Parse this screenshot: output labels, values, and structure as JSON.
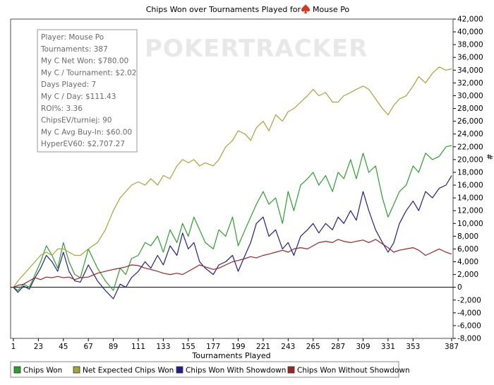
{
  "chart_data": {
    "type": "line",
    "title": "Chips Won over Tournaments Played for",
    "player_name": "Mouse Po",
    "watermark": "POKERTRACKER",
    "xlabel": "Tournaments Played",
    "ylabel": "#",
    "xlim": [
      1,
      387
    ],
    "ylim": [
      -8000,
      42000
    ],
    "xticks": [
      1,
      23,
      45,
      67,
      89,
      111,
      133,
      155,
      177,
      199,
      221,
      243,
      265,
      287,
      309,
      331,
      353,
      387
    ],
    "yticks": [
      -8000,
      -6000,
      -4000,
      -2000,
      0,
      2000,
      4000,
      6000,
      8000,
      10000,
      12000,
      14000,
      16000,
      18000,
      20000,
      22000,
      24000,
      26000,
      28000,
      30000,
      32000,
      34000,
      36000,
      38000,
      40000,
      42000
    ],
    "ytick_labels": [
      "-8,000",
      "-6,000",
      "-4,000",
      "-2,000",
      "0",
      "2,000",
      "4,000",
      "6,000",
      "8,000",
      "10,000",
      "12,000",
      "14,000",
      "16,000",
      "18,000",
      "20,000",
      "22,000",
      "24,000",
      "26,000",
      "28,000",
      "30,000",
      "32,000",
      "34,000",
      "36,000",
      "38,000",
      "40,000",
      "42,000"
    ],
    "grid": false,
    "legend_position": "bottom",
    "series": [
      {
        "name": "Chips Won",
        "color": "#2e9e2e",
        "x": [
          1,
          5,
          10,
          15,
          20,
          25,
          30,
          35,
          40,
          45,
          50,
          55,
          60,
          67,
          75,
          82,
          89,
          95,
          100,
          105,
          111,
          117,
          122,
          128,
          133,
          139,
          145,
          150,
          155,
          160,
          165,
          170,
          177,
          182,
          188,
          194,
          199,
          205,
          210,
          215,
          221,
          226,
          232,
          238,
          243,
          248,
          254,
          260,
          265,
          270,
          276,
          282,
          287,
          292,
          298,
          303,
          309,
          314,
          320,
          326,
          331,
          336,
          341,
          347,
          353,
          358,
          364,
          370,
          376,
          382,
          387
        ],
        "y": [
          0,
          -500,
          500,
          0,
          2000,
          4000,
          6500,
          5000,
          3000,
          7000,
          4000,
          2000,
          1500,
          6000,
          3000,
          1000,
          -500,
          3000,
          2000,
          4500,
          5000,
          7000,
          6500,
          8000,
          5500,
          9000,
          7000,
          10000,
          8000,
          11000,
          9000,
          7000,
          6000,
          9000,
          8000,
          11000,
          6500,
          9000,
          11000,
          13000,
          15000,
          13000,
          14000,
          10000,
          15000,
          12000,
          16000,
          17000,
          18000,
          16000,
          17500,
          15000,
          18000,
          17000,
          20000,
          17000,
          21000,
          18000,
          19000,
          14000,
          11000,
          13000,
          15000,
          16000,
          19000,
          18000,
          21000,
          20000,
          20500,
          22000,
          22200
        ]
      },
      {
        "name": "Net Expected Chips Won",
        "color": "#a4a43a",
        "x": [
          1,
          5,
          10,
          15,
          20,
          25,
          30,
          35,
          40,
          45,
          50,
          55,
          60,
          67,
          75,
          82,
          89,
          95,
          100,
          105,
          111,
          117,
          122,
          128,
          133,
          139,
          145,
          150,
          155,
          160,
          165,
          170,
          177,
          182,
          188,
          194,
          199,
          205,
          210,
          215,
          221,
          226,
          232,
          238,
          243,
          248,
          254,
          260,
          265,
          270,
          276,
          282,
          287,
          292,
          298,
          303,
          309,
          314,
          320,
          326,
          331,
          336,
          341,
          347,
          353,
          358,
          364,
          370,
          376,
          382,
          387
        ],
        "y": [
          0,
          1000,
          2000,
          3000,
          4000,
          5000,
          5500,
          5000,
          6000,
          6000,
          5500,
          5000,
          5000,
          6000,
          7000,
          9000,
          12000,
          14000,
          15000,
          16000,
          16500,
          16000,
          17000,
          16000,
          17500,
          17000,
          19000,
          20000,
          19500,
          20000,
          19000,
          19500,
          19000,
          20000,
          22000,
          23000,
          24500,
          24000,
          23000,
          25000,
          26000,
          24500,
          27000,
          26000,
          27500,
          28000,
          29000,
          30000,
          31000,
          30000,
          30500,
          29000,
          29000,
          30000,
          30500,
          31000,
          31500,
          31000,
          29500,
          28000,
          27000,
          28500,
          29500,
          30000,
          31500,
          33000,
          32000,
          33500,
          34500,
          34000,
          34200
        ]
      },
      {
        "name": "Chips Won With Showdown",
        "color": "#20208c",
        "x": [
          1,
          5,
          10,
          15,
          20,
          25,
          30,
          35,
          40,
          45,
          50,
          55,
          60,
          67,
          75,
          82,
          89,
          95,
          100,
          105,
          111,
          117,
          122,
          128,
          133,
          139,
          145,
          150,
          155,
          160,
          165,
          170,
          177,
          182,
          188,
          194,
          199,
          205,
          210,
          215,
          221,
          226,
          232,
          238,
          243,
          248,
          254,
          260,
          265,
          270,
          276,
          282,
          287,
          292,
          298,
          303,
          309,
          314,
          320,
          326,
          331,
          336,
          341,
          347,
          353,
          358,
          364,
          370,
          376,
          382,
          387
        ],
        "y": [
          0,
          -800,
          200,
          -300,
          1500,
          3000,
          5000,
          4000,
          2500,
          5500,
          2500,
          1000,
          800,
          3500,
          1000,
          -500,
          -1800,
          500,
          0,
          1500,
          2500,
          4000,
          3000,
          5000,
          3500,
          6500,
          5000,
          8500,
          6000,
          7000,
          4000,
          3000,
          2000,
          3500,
          4000,
          5000,
          2500,
          5000,
          7000,
          10000,
          11000,
          8000,
          9000,
          6000,
          7000,
          5000,
          8000,
          9000,
          10000,
          8500,
          10000,
          9000,
          11000,
          10000,
          12000,
          10500,
          15000,
          12000,
          9000,
          7000,
          5500,
          7000,
          10000,
          12000,
          13500,
          12000,
          15000,
          14000,
          15500,
          16000,
          17500
        ]
      },
      {
        "name": "Chips Won Without Showdown",
        "color": "#9c2424",
        "x": [
          1,
          5,
          10,
          15,
          20,
          25,
          30,
          35,
          40,
          45,
          50,
          55,
          60,
          67,
          75,
          82,
          89,
          95,
          100,
          105,
          111,
          117,
          122,
          128,
          133,
          139,
          145,
          150,
          155,
          160,
          165,
          170,
          177,
          182,
          188,
          194,
          199,
          205,
          210,
          215,
          221,
          226,
          232,
          238,
          243,
          248,
          254,
          260,
          265,
          270,
          276,
          282,
          287,
          292,
          298,
          303,
          309,
          314,
          320,
          326,
          331,
          336,
          341,
          347,
          353,
          358,
          364,
          370,
          376,
          382,
          387
        ],
        "y": [
          0,
          300,
          500,
          1000,
          1500,
          1200,
          1600,
          1500,
          1700,
          1500,
          1600,
          1200,
          1500,
          1600,
          2200,
          2500,
          2800,
          3000,
          3200,
          3500,
          3400,
          3000,
          2800,
          2500,
          2200,
          2000,
          2200,
          2000,
          2500,
          3000,
          3500,
          3200,
          2800,
          3000,
          3500,
          4000,
          4200,
          4500,
          4800,
          4600,
          5000,
          5200,
          5500,
          5800,
          5500,
          6000,
          6200,
          6000,
          6500,
          7000,
          7200,
          7000,
          7500,
          7200,
          7000,
          7200,
          7400,
          7000,
          7500,
          6800,
          6200,
          5500,
          5800,
          6000,
          6200,
          5800,
          5000,
          5500,
          6000,
          5500,
          5200
        ]
      }
    ]
  },
  "info_box": {
    "lines": [
      "Player: Mouse Po",
      "Tournaments: 387",
      "My C Net Won: $780.00",
      "My C / Tournament: $2.02",
      "Days Played: 7",
      "My C / Day: $111.43",
      "ROI%: 3.36",
      "ChipsEV/turniej: 90",
      "My C Avg Buy-In: $60.00",
      "HyperEV60: $2,707.27"
    ]
  }
}
